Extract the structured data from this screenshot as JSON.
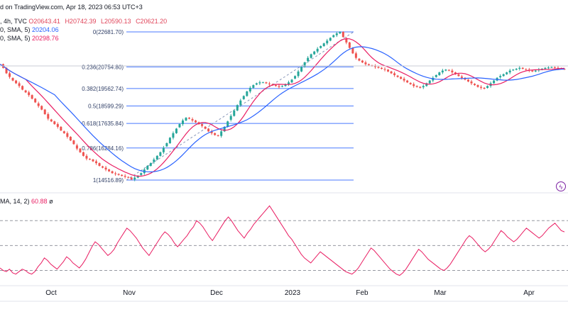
{
  "header": {
    "line1_text": "d on TradingView.com, Apr 18, 2023 06:53 UTC+3",
    "line2_prefix": ", 4h, TVC",
    "open": "O20643.41",
    "high": "H20742.39",
    "low": "L20590.13",
    "close": "C20621.20",
    "sma1_label": "0, SMA, 5)",
    "sma1_value": "20204.06",
    "sma2_label": "0, SMA, 5)",
    "sma2_value": "20298.76",
    "rsi_label": "MA, 14, 2)",
    "rsi_value": "60.88",
    "rsi_extra": "ø"
  },
  "colors": {
    "up": "#26a69a",
    "down": "#ef5350",
    "sma_fast": "#e91e63",
    "sma_slow": "#2962ff",
    "fib": "#2962ff",
    "rsi": "#e91e63"
  },
  "icons": {
    "live": "lightning-icon",
    "live_glyph": "ϟ"
  },
  "chart_data": {
    "type": "candlestick",
    "x_ticks": [
      "Oct",
      "Nov",
      "Dec",
      "2023",
      "Feb",
      "Mar",
      "Apr"
    ],
    "fib_levels": [
      {
        "label": "0(22681.70)",
        "value": 22681.7
      },
      {
        "label": "0.236(20754.80)",
        "value": 20754.8
      },
      {
        "label": "0.382(19562.74)",
        "value": 19562.74
      },
      {
        "label": "0.5(18599.29)",
        "value": 18599.29
      },
      {
        "label": "0.618(17635.84)",
        "value": 17635.84
      },
      {
        "label": "0.786(16284.16)",
        "value": 16284.16
      },
      {
        "label": "1(14516.89)",
        "value": 14516.89
      }
    ],
    "price_series": [
      20900,
      20700,
      20400,
      20200,
      20000,
      19850,
      19700,
      19500,
      19350,
      19200,
      19000,
      18800,
      18600,
      18400,
      18150,
      17900,
      17750,
      17600,
      17450,
      17250,
      17100,
      16900,
      16700,
      16500,
      16250,
      16050,
      15850,
      15700,
      15650,
      15550,
      15450,
      15300,
      15200,
      15100,
      15000,
      14900,
      14850,
      14800,
      14750,
      14700,
      14650,
      14550,
      14650,
      14750,
      14900,
      15100,
      15300,
      15450,
      15650,
      15850,
      16050,
      16300,
      16550,
      16850,
      17100,
      17350,
      17600,
      17800,
      17950,
      17900,
      17800,
      17700,
      17600,
      17500,
      17350,
      17200,
      17100,
      17000,
      16950,
      17200,
      17450,
      17750,
      18050,
      18350,
      18650,
      18900,
      19150,
      19400,
      19600,
      19750,
      19850,
      19900,
      19900,
      19850,
      19800,
      19750,
      19700,
      19650,
      19700,
      19800,
      19900,
      20050,
      20250,
      20500,
      20750,
      21000,
      21250,
      21450,
      21600,
      21750,
      21900,
      22050,
      22200,
      22350,
      22500,
      22600,
      22680,
      22400,
      22100,
      21800,
      21500,
      21250,
      21100,
      21000,
      20900,
      20850,
      20800,
      20750,
      20700,
      20650,
      20600,
      20500,
      20400,
      20300,
      20200,
      20100,
      20000,
      19900,
      19800,
      19700,
      19650,
      19600,
      19700,
      19850,
      20000,
      20150,
      20300,
      20450,
      20550,
      20600,
      20550,
      20450,
      20350,
      20250,
      20150,
      20050,
      19950,
      19850,
      19750,
      19650,
      19600,
      19550,
      19700,
      19850,
      20000,
      20150,
      20250,
      20350,
      20450,
      20550,
      20600,
      20650,
      20700,
      20650,
      20600,
      20550,
      20500,
      20550,
      20600,
      20650,
      20700,
      20720,
      20740,
      20700,
      20680,
      20650,
      20621
    ],
    "rsi_series": [
      32,
      30,
      29,
      31,
      28,
      27,
      29,
      31,
      30,
      28,
      27,
      29,
      33,
      36,
      40,
      38,
      35,
      33,
      31,
      34,
      37,
      41,
      39,
      36,
      34,
      32,
      35,
      39,
      44,
      49,
      53,
      51,
      48,
      45,
      42,
      44,
      47,
      52,
      56,
      60,
      64,
      62,
      59,
      56,
      52,
      48,
      45,
      42,
      46,
      50,
      54,
      58,
      61,
      59,
      56,
      52,
      49,
      52,
      55,
      58,
      62,
      65,
      70,
      68,
      65,
      61,
      57,
      54,
      58,
      62,
      66,
      70,
      73,
      70,
      66,
      62,
      59,
      56,
      60,
      63,
      67,
      70,
      73,
      76,
      79,
      82,
      78,
      74,
      70,
      66,
      62,
      58,
      55,
      51,
      47,
      43,
      40,
      38,
      36,
      39,
      42,
      45,
      43,
      41,
      39,
      37,
      35,
      33,
      31,
      29,
      28,
      27,
      29,
      32,
      36,
      40,
      44,
      48,
      46,
      43,
      40,
      37,
      34,
      31,
      29,
      27,
      26,
      28,
      31,
      35,
      39,
      43,
      47,
      45,
      42,
      39,
      37,
      35,
      33,
      31,
      30,
      32,
      35,
      39,
      43,
      47,
      51,
      55,
      58,
      56,
      53,
      50,
      47,
      45,
      47,
      50,
      54,
      58,
      62,
      60,
      57,
      55,
      53,
      55,
      58,
      61,
      64,
      62,
      60,
      58,
      56,
      58,
      61,
      64,
      66,
      68,
      65,
      62,
      61
    ]
  }
}
